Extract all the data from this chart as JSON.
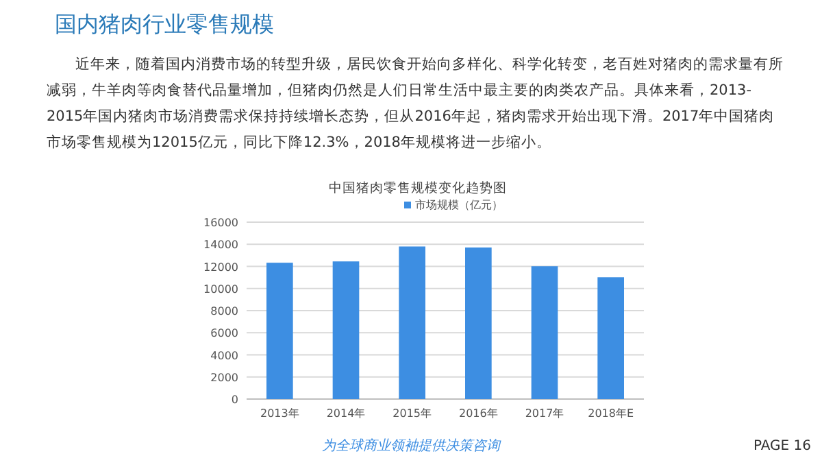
{
  "chart_data": {
    "type": "bar",
    "title": "中国猪肉零售规模变化趋势图",
    "categories": [
      "2013年",
      "2014年",
      "2015年",
      "2016年",
      "2017年",
      "2018年E"
    ],
    "series": [
      {
        "name": "市场规模（亿元）",
        "color": "#3d8ee2",
        "values": [
          12330,
          12450,
          13800,
          13710,
          12015,
          11020
        ]
      }
    ],
    "ylim": [
      0,
      16000
    ],
    "yticks": [
      0,
      2000,
      4000,
      6000,
      8000,
      10000,
      12000,
      14000,
      16000
    ],
    "grid": "y",
    "legend": "top",
    "annotations": [
      "国内猪肉行业零售规模",
      "近年来，随着国内消费市场的转型升级，居民饮食开始向多样化、科学化转变，老百姓对猪肉的需求量有所减弱，牛羊肉等肉食替代品量增加，但猪肉仍然是人们日常生活中最主要的肉类农产品。具体来看，2013-2015年国内猪肉市场消费需求保持持续增长态势，但从2016年起，猪肉需求开始出现下滑。2017年中国猪肉市场零售规模为12015亿元，同比下降12.3%，2018年规模将进一步缩小。",
      "为全球商业领袖提供决策咨询",
      "PAGE 16"
    ]
  }
}
